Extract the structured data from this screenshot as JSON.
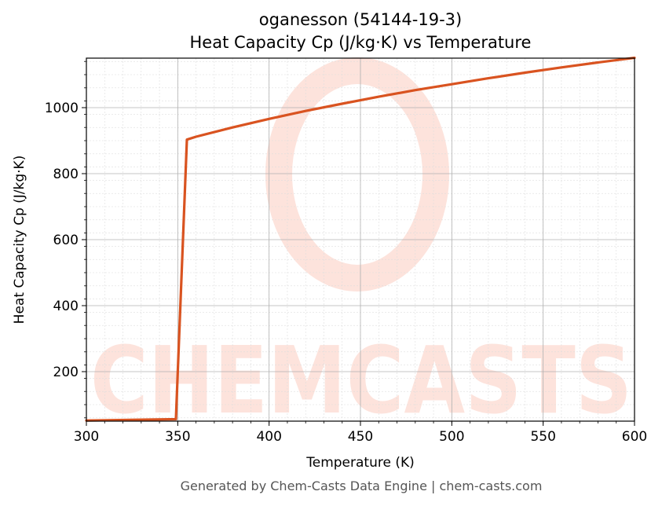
{
  "footer": "Generated by Chem-Casts Data Engine | chem-casts.com",
  "watermark": {
    "text": "CHEMCASTS",
    "color": "#fde3dc"
  },
  "chart_data": {
    "type": "line",
    "title": "oganesson (54144-19-3)",
    "subtitle": "Heat Capacity Cp (J/kg·K) vs Temperature",
    "xlabel": "Temperature (K)",
    "ylabel": "Heat Capacity Cp (J/kg·K)",
    "xlim": [
      300,
      600
    ],
    "ylim": [
      50,
      1150
    ],
    "xticks": [
      300,
      350,
      400,
      450,
      500,
      550,
      600
    ],
    "yticks": [
      200,
      400,
      600,
      800,
      1000
    ],
    "grid": true,
    "minor_grid": true,
    "legend": "none",
    "series": [
      {
        "color": "#d95320",
        "x": [
          300,
          349,
          355,
          360,
          380,
          400,
          420,
          440,
          460,
          480,
          500,
          520,
          540,
          560,
          580,
          600
        ],
        "y": [
          52,
          56,
          903,
          912,
          940,
          966,
          990,
          1012,
          1033,
          1053,
          1071,
          1089,
          1106,
          1122,
          1137,
          1151
        ]
      }
    ]
  }
}
